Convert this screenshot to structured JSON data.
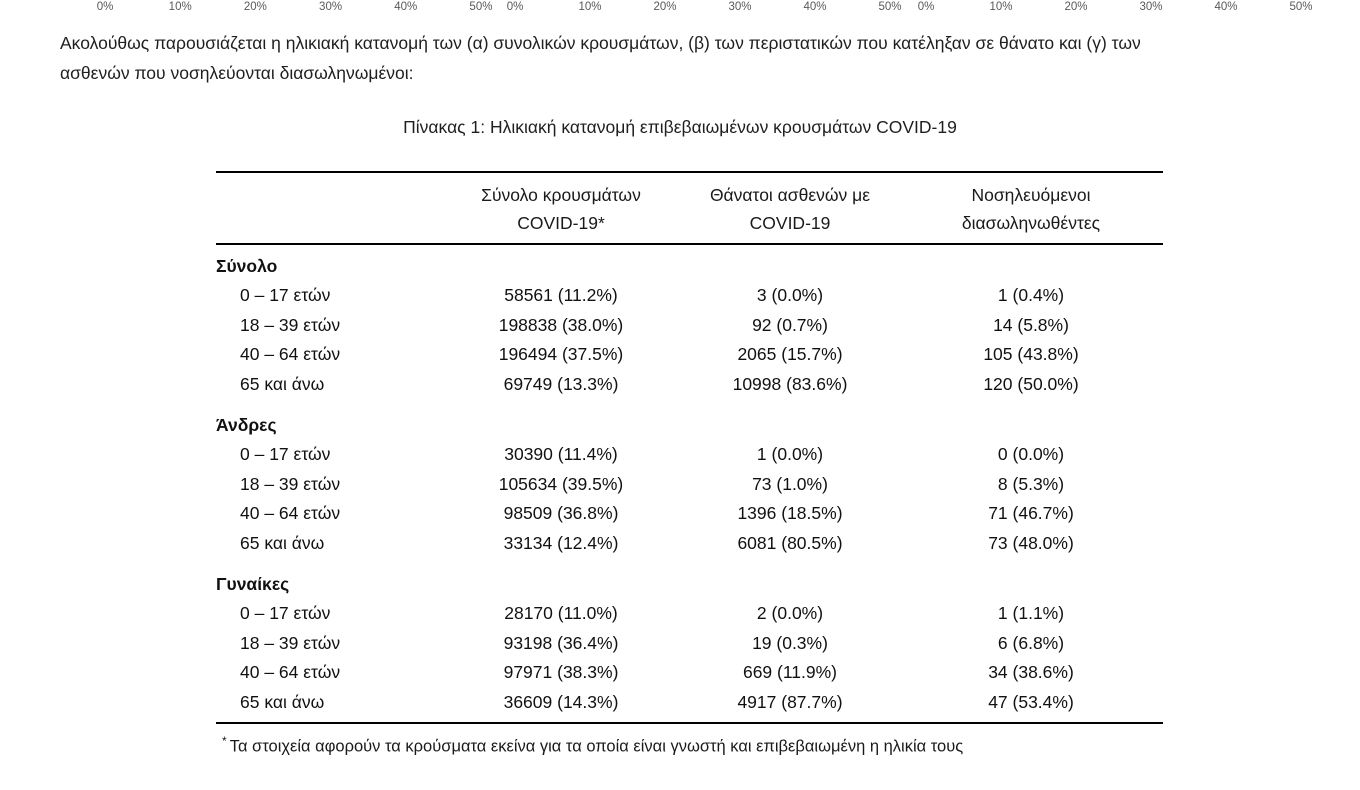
{
  "axis_strip": {
    "tick_labels": [
      "0%",
      "10%",
      "20%",
      "30%",
      "40%",
      "50%"
    ],
    "group_count": 3
  },
  "paragraph": {
    "lines": [
      "Ακολούθως παρουσιάζεται η ηλικιακή κατανομή των (α) συνολικών κρουσμάτων, (β) των περιστατικών που κατέληξαν σε θάνατο και (γ) των",
      "ασθενών που νοσηλεύονται διασωληνωμένοι:"
    ]
  },
  "table": {
    "title": "Πίνακας 1: Ηλικιακή κατανομή επιβεβαιωμένων κρουσμάτων COVID-19",
    "columns": {
      "cases": "Σύνολο κρουσμάτων COVID-19*",
      "deaths": "Θάνατοι ασθενών με COVID-19",
      "intubated": "Νοσηλευόμενοι διασωληνωθέντες"
    },
    "sections": [
      {
        "label": "Σύνολο",
        "rows": [
          {
            "age": "0 – 17 ετών",
            "cases": "58561 (11.2%)",
            "deaths": "3 (0.0%)",
            "intubated": "1 (0.4%)"
          },
          {
            "age": "18 – 39 ετών",
            "cases": "198838 (38.0%)",
            "deaths": "92 (0.7%)",
            "intubated": "14 (5.8%)"
          },
          {
            "age": "40 – 64 ετών",
            "cases": "196494 (37.5%)",
            "deaths": "2065 (15.7%)",
            "intubated": "105 (43.8%)"
          },
          {
            "age": "65 και άνω",
            "cases": "69749 (13.3%)",
            "deaths": "10998 (83.6%)",
            "intubated": "120 (50.0%)"
          }
        ]
      },
      {
        "label": "Άνδρες",
        "rows": [
          {
            "age": "0 – 17 ετών",
            "cases": "30390 (11.4%)",
            "deaths": "1 (0.0%)",
            "intubated": "0 (0.0%)"
          },
          {
            "age": "18 – 39 ετών",
            "cases": "105634 (39.5%)",
            "deaths": "73 (1.0%)",
            "intubated": "8 (5.3%)"
          },
          {
            "age": "40 – 64 ετών",
            "cases": "98509 (36.8%)",
            "deaths": "1396 (18.5%)",
            "intubated": "71 (46.7%)"
          },
          {
            "age": "65 και άνω",
            "cases": "33134 (12.4%)",
            "deaths": "6081 (80.5%)",
            "intubated": "73 (48.0%)"
          }
        ]
      },
      {
        "label": "Γυναίκες",
        "rows": [
          {
            "age": "0 – 17 ετών",
            "cases": "28170 (11.0%)",
            "deaths": "2 (0.0%)",
            "intubated": "1 (1.1%)"
          },
          {
            "age": "18 – 39 ετών",
            "cases": "93198 (36.4%)",
            "deaths": "19 (0.3%)",
            "intubated": "6 (6.8%)"
          },
          {
            "age": "40 – 64 ετών",
            "cases": "97971 (38.3%)",
            "deaths": "669 (11.9%)",
            "intubated": "34 (38.6%)"
          },
          {
            "age": "65 και άνω",
            "cases": "36609 (14.3%)",
            "deaths": "4917 (87.7%)",
            "intubated": "47 (53.4%)"
          }
        ]
      }
    ],
    "footnote_marker": "*",
    "footnote": "Τα στοιχεία αφορούν τα κρούσματα εκείνα για τα οποία είναι γνωστή και επιβεβαιωμένη η ηλικία τους"
  },
  "colors": {
    "text": "#1f1f1f",
    "axis_label": "#595959",
    "table_rule": "#000000"
  }
}
